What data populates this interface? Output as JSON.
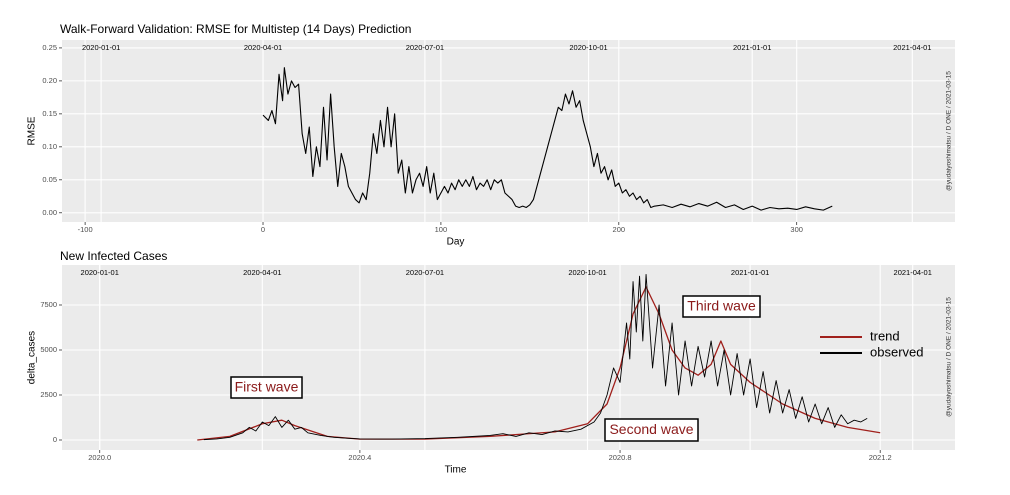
{
  "chart_data": [
    {
      "type": "line",
      "title": "Walk-Forward Validation: RMSE for Multistep (14 Days) Prediction",
      "x_label": "Day",
      "y_label": "RMSE",
      "caption": "@yudaiyoshimatsu / D ONE / 2021-03-15",
      "color": "#000000",
      "x": [
        0,
        3,
        5,
        7,
        9,
        11,
        12,
        14,
        16,
        18,
        20,
        22,
        24,
        26,
        28,
        30,
        32,
        34,
        36,
        38,
        40,
        42,
        44,
        46,
        48,
        50,
        52,
        54,
        56,
        58,
        60,
        62,
        64,
        66,
        68,
        70,
        72,
        74,
        76,
        78,
        80,
        82,
        84,
        86,
        88,
        90,
        92,
        94,
        96,
        98,
        100,
        102,
        104,
        106,
        108,
        110,
        112,
        114,
        116,
        118,
        120,
        122,
        124,
        126,
        128,
        130,
        132,
        134,
        136,
        138,
        140,
        142,
        144,
        146,
        148,
        150,
        152,
        154,
        156,
        158,
        160,
        162,
        164,
        166,
        168,
        170,
        172,
        174,
        176,
        178,
        180,
        182,
        184,
        186,
        188,
        190,
        192,
        194,
        196,
        198,
        200,
        202,
        204,
        206,
        208,
        210,
        212,
        214,
        216,
        218,
        220,
        225,
        230,
        235,
        240,
        245,
        250,
        255,
        260,
        265,
        270,
        275,
        280,
        285,
        290,
        295,
        300,
        305,
        310,
        315,
        320
      ],
      "values": [
        0.148,
        0.14,
        0.155,
        0.135,
        0.21,
        0.17,
        0.22,
        0.18,
        0.2,
        0.19,
        0.195,
        0.12,
        0.09,
        0.13,
        0.055,
        0.1,
        0.07,
        0.16,
        0.08,
        0.18,
        0.1,
        0.04,
        0.09,
        0.07,
        0.04,
        0.03,
        0.02,
        0.015,
        0.03,
        0.02,
        0.06,
        0.12,
        0.09,
        0.14,
        0.1,
        0.16,
        0.1,
        0.15,
        0.06,
        0.08,
        0.03,
        0.07,
        0.03,
        0.05,
        0.06,
        0.04,
        0.07,
        0.03,
        0.06,
        0.02,
        0.03,
        0.04,
        0.03,
        0.045,
        0.035,
        0.05,
        0.04,
        0.05,
        0.04,
        0.055,
        0.035,
        0.045,
        0.04,
        0.05,
        0.035,
        0.05,
        0.045,
        0.05,
        0.03,
        0.025,
        0.02,
        0.01,
        0.008,
        0.01,
        0.008,
        0.012,
        0.02,
        0.04,
        0.06,
        0.08,
        0.1,
        0.12,
        0.14,
        0.16,
        0.155,
        0.18,
        0.165,
        0.185,
        0.16,
        0.17,
        0.14,
        0.12,
        0.1,
        0.07,
        0.09,
        0.06,
        0.07,
        0.05,
        0.065,
        0.04,
        0.045,
        0.03,
        0.035,
        0.025,
        0.03,
        0.02,
        0.025,
        0.015,
        0.02,
        0.008,
        0.01,
        0.012,
        0.008,
        0.013,
        0.009,
        0.014,
        0.01,
        0.016,
        0.008,
        0.012,
        0.005,
        0.01,
        0.004,
        0.008,
        0.006,
        0.007,
        0.005,
        0.009,
        0.006,
        0.004,
        0.01
      ],
      "xlim": [
        -113,
        389
      ],
      "xticks": [
        -100,
        0,
        100,
        200,
        300
      ],
      "x2ticks": [
        {
          "value": -91,
          "label": "2020-01-01"
        },
        {
          "value": 0,
          "label": "2020-04-01"
        },
        {
          "value": 91,
          "label": "2020-07-01"
        },
        {
          "value": 183,
          "label": "2020-10-01"
        },
        {
          "value": 275,
          "label": "2021-01-01"
        },
        {
          "value": 365,
          "label": "2021-04-01"
        }
      ],
      "ylim": [
        -0.014,
        0.262
      ],
      "yticks": [
        {
          "value": 0,
          "label": "0.00"
        },
        {
          "value": 0.05,
          "label": "0.05"
        },
        {
          "value": 0.1,
          "label": "0.10"
        },
        {
          "value": 0.15,
          "label": "0.15"
        },
        {
          "value": 0.2,
          "label": "0.20"
        },
        {
          "value": 0.25,
          "label": "0.25"
        }
      ],
      "grid": true
    },
    {
      "type": "line",
      "title": "New Infected Cases",
      "x_label": "Time",
      "y_label": "delta_cases",
      "caption": "@yudaiyoshimatsu / D ONE / 2021-03-15",
      "annotations": [
        "First wave",
        "Second wave",
        "Third wave"
      ],
      "legend": "right",
      "series": [
        {
          "name": "trend",
          "color": "#a0201c",
          "x": [
            2020.15,
            2020.2,
            2020.25,
            2020.28,
            2020.3,
            2020.35,
            2020.4,
            2020.5,
            2020.6,
            2020.7,
            2020.75,
            2020.78,
            2020.8,
            2020.82,
            2020.84,
            2020.86,
            2020.88,
            2020.9,
            2020.92,
            2020.94,
            2020.955,
            2020.97,
            2021.0,
            2021.05,
            2021.1,
            2021.15,
            2021.2
          ],
          "values": [
            0,
            200,
            900,
            1100,
            800,
            200,
            50,
            50,
            200,
            450,
            900,
            2000,
            4000,
            7000,
            8500,
            7000,
            5000,
            4000,
            3600,
            4200,
            5500,
            4200,
            3200,
            2000,
            1200,
            700,
            400
          ]
        },
        {
          "name": "observed",
          "color": "#000000",
          "x": [
            2020.16,
            2020.18,
            2020.2,
            2020.22,
            2020.23,
            2020.24,
            2020.25,
            2020.26,
            2020.27,
            2020.28,
            2020.29,
            2020.3,
            2020.31,
            2020.32,
            2020.34,
            2020.36,
            2020.38,
            2020.4,
            2020.45,
            2020.5,
            2020.55,
            2020.6,
            2020.62,
            2020.64,
            2020.66,
            2020.68,
            2020.7,
            2020.72,
            2020.74,
            2020.76,
            2020.77,
            2020.78,
            2020.79,
            2020.8,
            2020.81,
            2020.815,
            2020.82,
            2020.825,
            2020.83,
            2020.835,
            2020.84,
            2020.85,
            2020.86,
            2020.87,
            2020.88,
            2020.89,
            2020.9,
            2020.91,
            2020.92,
            2020.93,
            2020.94,
            2020.95,
            2020.96,
            2020.97,
            2020.98,
            2020.99,
            2021.0,
            2021.01,
            2021.02,
            2021.03,
            2021.04,
            2021.05,
            2021.06,
            2021.07,
            2021.08,
            2021.09,
            2021.1,
            2021.11,
            2021.12,
            2021.13,
            2021.14,
            2021.15,
            2021.16,
            2021.17,
            2021.18
          ],
          "values": [
            20,
            60,
            150,
            400,
            700,
            500,
            1000,
            800,
            1300,
            700,
            1100,
            600,
            700,
            400,
            250,
            150,
            100,
            60,
            50,
            80,
            150,
            250,
            350,
            200,
            400,
            300,
            500,
            450,
            600,
            1000,
            1500,
            2500,
            4000,
            3200,
            6500,
            4500,
            8800,
            6000,
            9100,
            5500,
            9200,
            4000,
            7500,
            3000,
            6500,
            2500,
            5500,
            3000,
            5200,
            3500,
            5500,
            3000,
            5000,
            2500,
            4800,
            2500,
            4500,
            1800,
            3800,
            1500,
            3300,
            1500,
            2800,
            1200,
            2400,
            1000,
            2000,
            900,
            1800,
            700,
            1400,
            900,
            1100,
            1000,
            1200
          ]
        }
      ],
      "xlim": [
        2019.942,
        2021.315
      ],
      "xticks": [
        {
          "value": 2020,
          "label": "2020.0"
        },
        2020.4,
        2020.8,
        2021.2
      ],
      "x2ticks": [
        {
          "value": 2020,
          "label": "2020-01-01"
        },
        {
          "value": 2020.25,
          "label": "2020-04-01"
        },
        {
          "value": 2020.5,
          "label": "2020-07-01"
        },
        {
          "value": 2020.75,
          "label": "2020-10-01"
        },
        {
          "value": 2021,
          "label": "2021-01-01"
        },
        {
          "value": 2021.25,
          "label": "2021-04-01"
        }
      ],
      "ylim": [
        -556,
        9722
      ],
      "yticks": [
        0,
        2500,
        5000,
        7500
      ],
      "grid": true
    }
  ]
}
